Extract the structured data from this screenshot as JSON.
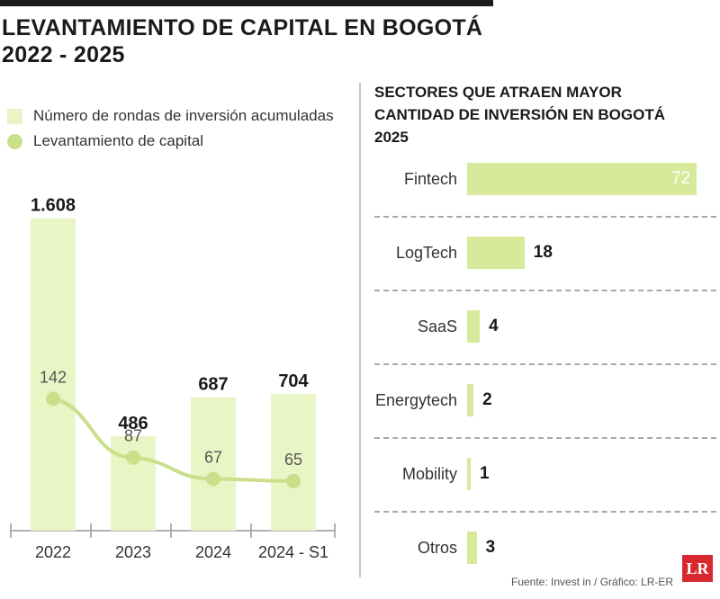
{
  "header": {
    "title_line1": "LEVANTAMIENTO DE CAPITAL EN BOGOTÁ",
    "title_line2": "2022 - 2025"
  },
  "legend": {
    "bars": "Número de rondas de inversión acumuladas",
    "line": "Levantamiento de capital"
  },
  "right_panel": {
    "title_line1": "SECTORES QUE ATRAEN MAYOR",
    "title_line2": "CANTIDAD DE INVERSIÓN EN BOGOTÁ",
    "title_line3": "2025"
  },
  "footer": {
    "source": "Fuente: Invest in / Gráfico: LR-ER",
    "logo": "LR"
  },
  "colors": {
    "bar_light": "#eaf5c5",
    "line_green": "#c9df8a",
    "hbar_green": "#d7e99a",
    "logo_red": "#d7282f"
  },
  "chart_data": [
    {
      "type": "bar",
      "categories": [
        "2022",
        "2023",
        "2024",
        "2024 - S1"
      ],
      "series": [
        {
          "name": "Número de rondas de inversión acumuladas",
          "type": "bar",
          "values": [
            1608,
            486,
            687,
            704
          ],
          "labels": [
            "1.608",
            "486",
            "687",
            "704"
          ]
        },
        {
          "name": "Levantamiento de capital",
          "type": "line",
          "values": [
            142,
            87,
            67,
            65
          ],
          "labels": [
            "142",
            "87",
            "67",
            "65"
          ]
        }
      ],
      "title": "LEVANTAMIENTO DE CAPITAL EN BOGOTÁ 2022 - 2025",
      "ylim": [
        0,
        1750
      ]
    },
    {
      "type": "bar",
      "orientation": "horizontal",
      "title": "SECTORES QUE ATRAEN MAYOR CANTIDAD DE INVERSIÓN EN BOGOTÁ 2025",
      "categories": [
        "Fintech",
        "LogTech",
        "SaaS",
        "Energytech",
        "Mobility",
        "Otros"
      ],
      "values": [
        72,
        18,
        4,
        2,
        1,
        3
      ],
      "labels": [
        "72",
        "18",
        "4",
        "2",
        "1",
        "3"
      ]
    }
  ]
}
